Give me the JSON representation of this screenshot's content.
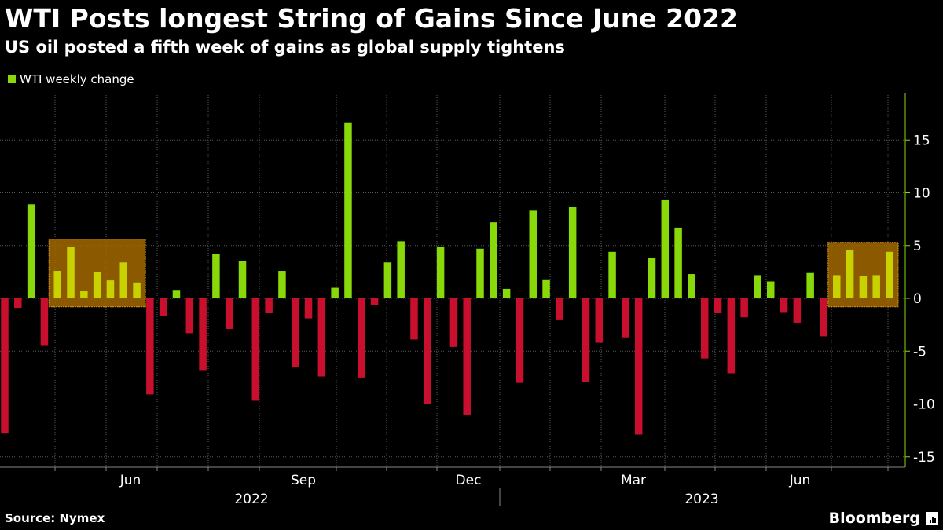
{
  "header": {
    "title": "WTI Posts longest String of Gains Since June 2022",
    "subtitle": "US oil posted a fifth week of gains as global supply tightens"
  },
  "footer": {
    "source": "Source: Nymex",
    "brand": "Bloomberg"
  },
  "colors": {
    "positive": "#88d80a",
    "negative": "#c8102e",
    "highlight_fill": "#a36a00",
    "highlight_bar": "#c8d200",
    "grid": "#5a5a5a",
    "axis": "#88d80a"
  },
  "chart_data": {
    "type": "bar",
    "legend": [
      "WTI weekly change"
    ],
    "legend_position": "top-left",
    "ylim": [
      -16,
      19
    ],
    "yticks": [
      15,
      10,
      5,
      0,
      -5,
      -10,
      -15
    ],
    "ytick_labels": [
      "15",
      "10",
      "5",
      "0",
      "-5",
      "-10",
      "-15"
    ],
    "x_month_labels": [
      "Jun",
      "Sep",
      "Dec",
      "Mar",
      "Jun"
    ],
    "x_year_labels": [
      "2022",
      "2023"
    ],
    "values": [
      -12.8,
      -0.9,
      8.9,
      -4.5,
      2.6,
      4.9,
      0.7,
      2.5,
      1.7,
      3.4,
      1.5,
      -9.1,
      -1.7,
      0.8,
      -3.3,
      -6.8,
      4.2,
      -2.9,
      3.5,
      -9.7,
      -1.4,
      2.6,
      -6.5,
      -1.9,
      -7.4,
      1.0,
      16.6,
      -7.5,
      -0.6,
      3.4,
      5.4,
      -3.9,
      -10.0,
      4.9,
      -4.6,
      -11.0,
      4.7,
      7.2,
      0.9,
      -8.0,
      8.3,
      1.8,
      -2.0,
      8.7,
      -7.9,
      -4.2,
      4.4,
      -3.7,
      -12.9,
      3.8,
      9.3,
      6.7,
      2.3,
      -5.7,
      -1.4,
      -7.1,
      -1.8,
      2.2,
      1.6,
      -1.3,
      -2.3,
      2.4,
      -3.6,
      2.2,
      4.6,
      2.1,
      2.2,
      4.4
    ],
    "highlight_ranges": [
      [
        4,
        10
      ],
      [
        63,
        67
      ]
    ]
  }
}
